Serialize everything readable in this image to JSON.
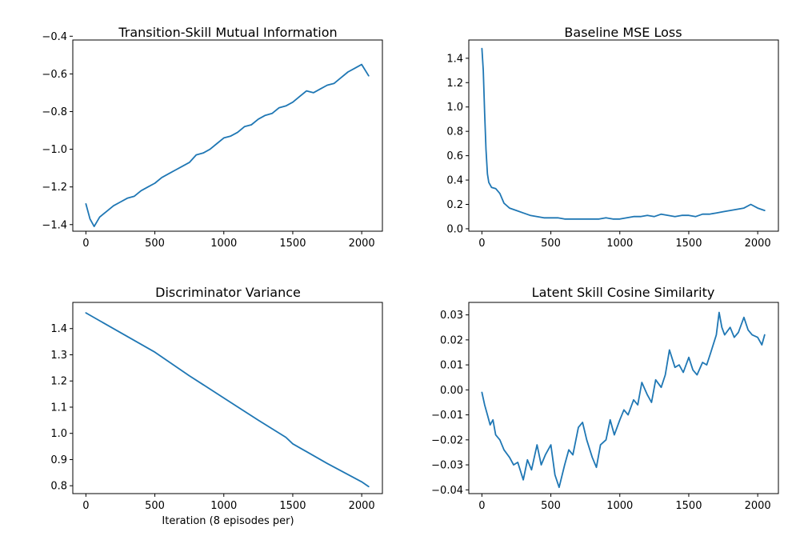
{
  "colors": {
    "series": "#1f77b4",
    "axes": "#000000",
    "background": "#ffffff"
  },
  "chart_data": [
    {
      "type": "line",
      "title": "Transition-Skill Mutual Information",
      "xlabel": "",
      "ylabel": "",
      "xlim": [
        -95,
        2150
      ],
      "ylim": [
        -1.435,
        -0.42
      ],
      "xticks": [
        0,
        500,
        1000,
        1500,
        2000
      ],
      "yticks": [
        -1.4,
        -1.2,
        -1.0,
        -0.8,
        -0.6,
        -0.4
      ],
      "ytick_labels": [
        "−1.4",
        "−1.2",
        "−1.0",
        "−0.8",
        "−0.6",
        "−0.4"
      ],
      "grid": false,
      "series": [
        {
          "x": [
            0,
            30,
            60,
            100,
            150,
            200,
            250,
            300,
            350,
            400,
            450,
            500,
            550,
            600,
            650,
            700,
            750,
            800,
            850,
            900,
            950,
            1000,
            1050,
            1100,
            1150,
            1200,
            1250,
            1300,
            1350,
            1400,
            1450,
            1500,
            1550,
            1600,
            1650,
            1700,
            1750,
            1800,
            1850,
            1900,
            1950,
            2000,
            2050
          ],
          "y": [
            -1.29,
            -1.37,
            -1.41,
            -1.36,
            -1.33,
            -1.3,
            -1.28,
            -1.26,
            -1.25,
            -1.22,
            -1.2,
            -1.18,
            -1.15,
            -1.13,
            -1.11,
            -1.09,
            -1.07,
            -1.03,
            -1.02,
            -1.0,
            -0.97,
            -0.94,
            -0.93,
            -0.91,
            -0.88,
            -0.87,
            -0.84,
            -0.82,
            -0.81,
            -0.78,
            -0.77,
            -0.75,
            -0.72,
            -0.69,
            -0.7,
            -0.68,
            -0.66,
            -0.65,
            -0.62,
            -0.59,
            -0.57,
            -0.55,
            -0.61
          ]
        }
      ]
    },
    {
      "type": "line",
      "title": "Baseline MSE Loss",
      "xlabel": "",
      "ylabel": "",
      "xlim": [
        -95,
        2150
      ],
      "ylim": [
        -0.02,
        1.55
      ],
      "xticks": [
        0,
        500,
        1000,
        1500,
        2000
      ],
      "yticks": [
        0.0,
        0.2,
        0.4,
        0.6,
        0.8,
        1.0,
        1.2,
        1.4
      ],
      "ytick_labels": [
        "0.0",
        "0.2",
        "0.4",
        "0.6",
        "0.8",
        "1.0",
        "1.2",
        "1.4"
      ],
      "grid": false,
      "series": [
        {
          "x": [
            0,
            10,
            20,
            30,
            40,
            50,
            70,
            100,
            130,
            160,
            200,
            250,
            300,
            350,
            400,
            450,
            500,
            550,
            600,
            650,
            700,
            750,
            800,
            850,
            900,
            950,
            1000,
            1050,
            1100,
            1150,
            1200,
            1250,
            1300,
            1350,
            1400,
            1450,
            1500,
            1550,
            1600,
            1650,
            1700,
            1750,
            1800,
            1850,
            1900,
            1950,
            2000,
            2050
          ],
          "y": [
            1.48,
            1.3,
            0.95,
            0.65,
            0.45,
            0.38,
            0.34,
            0.33,
            0.29,
            0.21,
            0.17,
            0.15,
            0.13,
            0.11,
            0.1,
            0.09,
            0.09,
            0.09,
            0.08,
            0.08,
            0.08,
            0.08,
            0.08,
            0.08,
            0.09,
            0.08,
            0.08,
            0.09,
            0.1,
            0.1,
            0.11,
            0.1,
            0.12,
            0.11,
            0.1,
            0.11,
            0.11,
            0.1,
            0.12,
            0.12,
            0.13,
            0.14,
            0.15,
            0.16,
            0.17,
            0.2,
            0.17,
            0.15
          ]
        }
      ]
    },
    {
      "type": "line",
      "title": "Discriminator Variance",
      "xlabel": "Iteration (8 episodes per)",
      "ylabel": "",
      "xlim": [
        -95,
        2150
      ],
      "ylim": [
        0.77,
        1.5
      ],
      "xticks": [
        0,
        500,
        1000,
        1500,
        2000
      ],
      "yticks": [
        0.8,
        0.9,
        1.0,
        1.1,
        1.2,
        1.3,
        1.4
      ],
      "ytick_labels": [
        "0.8",
        "0.9",
        "1.0",
        "1.1",
        "1.2",
        "1.3",
        "1.4"
      ],
      "grid": false,
      "series": [
        {
          "x": [
            0,
            250,
            500,
            750,
            1000,
            1250,
            1450,
            1500,
            1750,
            2000,
            2050
          ],
          "y": [
            1.46,
            1.385,
            1.31,
            1.22,
            1.135,
            1.05,
            0.985,
            0.96,
            0.885,
            0.815,
            0.797
          ]
        }
      ]
    },
    {
      "type": "line",
      "title": "Latent Skill Cosine Similarity",
      "xlabel": "",
      "ylabel": "",
      "xlim": [
        -95,
        2150
      ],
      "ylim": [
        -0.0415,
        0.035
      ],
      "xticks": [
        0,
        500,
        1000,
        1500,
        2000
      ],
      "yticks": [
        -0.04,
        -0.03,
        -0.02,
        -0.01,
        0.0,
        0.01,
        0.02,
        0.03
      ],
      "ytick_labels": [
        "−0.04",
        "−0.03",
        "−0.02",
        "−0.01",
        "0.00",
        "0.01",
        "0.02",
        "0.03"
      ],
      "grid": false,
      "series": [
        {
          "x": [
            0,
            20,
            40,
            60,
            80,
            100,
            130,
            160,
            200,
            230,
            260,
            300,
            330,
            360,
            400,
            430,
            460,
            500,
            530,
            560,
            600,
            630,
            660,
            700,
            730,
            760,
            800,
            830,
            860,
            900,
            930,
            960,
            1000,
            1030,
            1060,
            1100,
            1130,
            1160,
            1200,
            1230,
            1260,
            1300,
            1330,
            1360,
            1400,
            1430,
            1460,
            1500,
            1530,
            1560,
            1600,
            1630,
            1660,
            1700,
            1720,
            1740,
            1760,
            1800,
            1830,
            1860,
            1900,
            1930,
            1960,
            2000,
            2030,
            2050
          ],
          "y": [
            -0.001,
            -0.006,
            -0.01,
            -0.014,
            -0.012,
            -0.018,
            -0.02,
            -0.024,
            -0.027,
            -0.03,
            -0.029,
            -0.036,
            -0.028,
            -0.032,
            -0.022,
            -0.03,
            -0.026,
            -0.022,
            -0.034,
            -0.039,
            -0.03,
            -0.024,
            -0.026,
            -0.015,
            -0.013,
            -0.02,
            -0.027,
            -0.031,
            -0.022,
            -0.02,
            -0.012,
            -0.018,
            -0.012,
            -0.008,
            -0.01,
            -0.004,
            -0.006,
            0.003,
            -0.002,
            -0.005,
            0.004,
            0.001,
            0.006,
            0.016,
            0.009,
            0.01,
            0.007,
            0.013,
            0.008,
            0.006,
            0.011,
            0.01,
            0.015,
            0.022,
            0.031,
            0.025,
            0.022,
            0.025,
            0.021,
            0.023,
            0.029,
            0.024,
            0.022,
            0.021,
            0.018,
            0.022
          ]
        }
      ]
    }
  ]
}
